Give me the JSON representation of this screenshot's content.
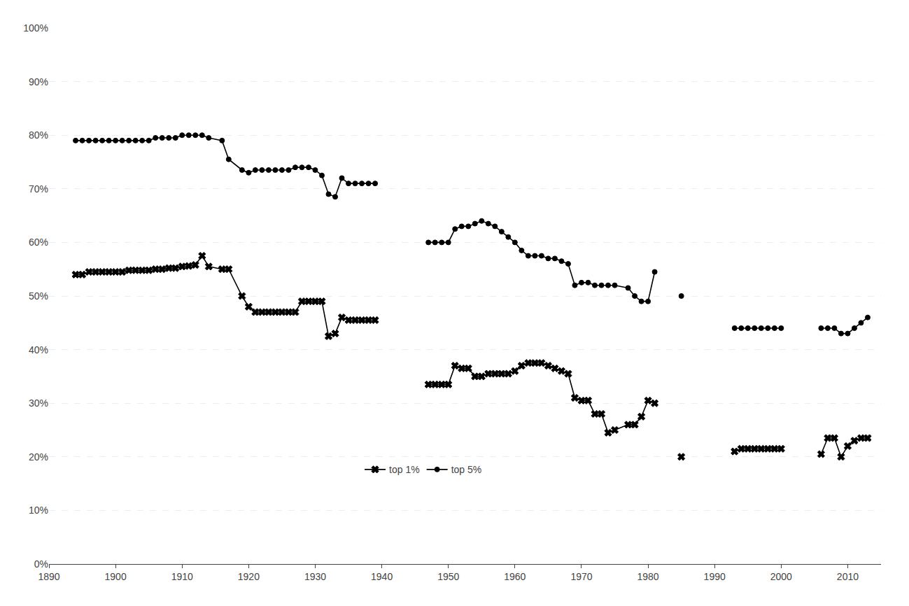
{
  "chart_data": {
    "type": "line",
    "x": [
      1894,
      1895,
      1896,
      1897,
      1898,
      1899,
      1900,
      1901,
      1902,
      1903,
      1904,
      1905,
      1906,
      1907,
      1908,
      1909,
      1910,
      1911,
      1912,
      1913,
      1914,
      1916,
      1917,
      1919,
      1920,
      1921,
      1922,
      1923,
      1924,
      1925,
      1926,
      1927,
      1928,
      1929,
      1930,
      1931,
      1932,
      1933,
      1934,
      1935,
      1936,
      1937,
      1938,
      1939,
      null,
      1947,
      1948,
      1949,
      1950,
      1951,
      1952,
      1953,
      1954,
      1955,
      1956,
      1957,
      1958,
      1959,
      1960,
      1961,
      1962,
      1963,
      1964,
      1965,
      1966,
      1967,
      1968,
      1969,
      1970,
      1971,
      1972,
      1973,
      1974,
      1975,
      1977,
      1978,
      1979,
      1980,
      1981,
      null,
      1985,
      null,
      1993,
      1994,
      1995,
      1996,
      1997,
      1998,
      1999,
      2000,
      null,
      2006,
      2007,
      2008,
      2009,
      2010,
      2011,
      2012,
      2013
    ],
    "series": [
      {
        "name": "top 1%",
        "color": "#000000",
        "marker": "x",
        "line_style": "solid",
        "values": [
          0.54,
          0.54,
          0.545,
          0.545,
          0.545,
          0.545,
          0.545,
          0.545,
          0.548,
          0.548,
          0.548,
          0.548,
          0.55,
          0.55,
          0.552,
          0.552,
          0.555,
          0.556,
          0.558,
          0.575,
          0.555,
          0.55,
          0.55,
          0.5,
          0.48,
          0.47,
          0.47,
          0.47,
          0.47,
          0.47,
          0.47,
          0.47,
          0.49,
          0.49,
          0.49,
          0.49,
          0.425,
          0.43,
          0.46,
          0.455,
          0.455,
          0.455,
          0.455,
          0.455,
          null,
          0.335,
          0.335,
          0.335,
          0.335,
          0.37,
          0.365,
          0.365,
          0.35,
          0.35,
          0.355,
          0.355,
          0.355,
          0.355,
          0.36,
          0.37,
          0.375,
          0.375,
          0.375,
          0.37,
          0.365,
          0.36,
          0.355,
          0.31,
          0.305,
          0.305,
          0.28,
          0.28,
          0.245,
          0.25,
          0.26,
          0.26,
          0.275,
          0.305,
          0.3,
          null,
          0.2,
          null,
          0.21,
          0.215,
          0.215,
          0.215,
          0.215,
          0.215,
          0.215,
          0.215,
          null,
          0.205,
          0.235,
          0.235,
          0.2,
          0.22,
          0.23,
          0.235,
          0.235
        ]
      },
      {
        "name": "top 5%",
        "color": "#000000",
        "marker": "circle",
        "line_style": "solid",
        "values": [
          0.79,
          0.79,
          0.79,
          0.79,
          0.79,
          0.79,
          0.79,
          0.79,
          0.79,
          0.79,
          0.79,
          0.79,
          0.795,
          0.795,
          0.795,
          0.795,
          0.8,
          0.8,
          0.8,
          0.8,
          0.795,
          0.79,
          0.755,
          0.735,
          0.73,
          0.735,
          0.735,
          0.735,
          0.735,
          0.735,
          0.735,
          0.74,
          0.74,
          0.74,
          0.735,
          0.725,
          0.69,
          0.685,
          0.72,
          0.71,
          0.71,
          0.71,
          0.71,
          0.71,
          null,
          0.6,
          0.6,
          0.6,
          0.6,
          0.625,
          0.63,
          0.63,
          0.635,
          0.64,
          0.635,
          0.63,
          0.62,
          0.61,
          0.6,
          0.585,
          0.575,
          0.575,
          0.575,
          0.57,
          0.57,
          0.565,
          0.56,
          0.52,
          0.525,
          0.525,
          0.52,
          0.52,
          0.52,
          0.52,
          0.515,
          0.5,
          0.49,
          0.49,
          0.545,
          null,
          0.5,
          null,
          0.44,
          0.44,
          0.44,
          0.44,
          0.44,
          0.44,
          0.44,
          0.44,
          null,
          0.44,
          0.44,
          0.44,
          0.43,
          0.43,
          0.44,
          0.45,
          0.46
        ]
      }
    ],
    "xlim": [
      1890,
      2015
    ],
    "ylim": [
      0,
      1.0
    ],
    "xticks": [
      1890,
      1900,
      1910,
      1920,
      1930,
      1940,
      1950,
      1960,
      1970,
      1980,
      1990,
      2000,
      2010
    ],
    "yticks": [
      {
        "value": 0.0,
        "label": "0%"
      },
      {
        "value": 0.1,
        "label": "10%"
      },
      {
        "value": 0.2,
        "label": "20%"
      },
      {
        "value": 0.3,
        "label": "30%"
      },
      {
        "value": 0.4,
        "label": "40%"
      },
      {
        "value": 0.5,
        "label": "50%"
      },
      {
        "value": 0.6,
        "label": "60%"
      },
      {
        "value": 0.7,
        "label": "70%"
      },
      {
        "value": 0.8,
        "label": "80%"
      },
      {
        "value": 0.9,
        "label": "90%"
      },
      {
        "value": 1.0,
        "label": "100%"
      }
    ],
    "grid": "y",
    "legend": "lower center"
  }
}
